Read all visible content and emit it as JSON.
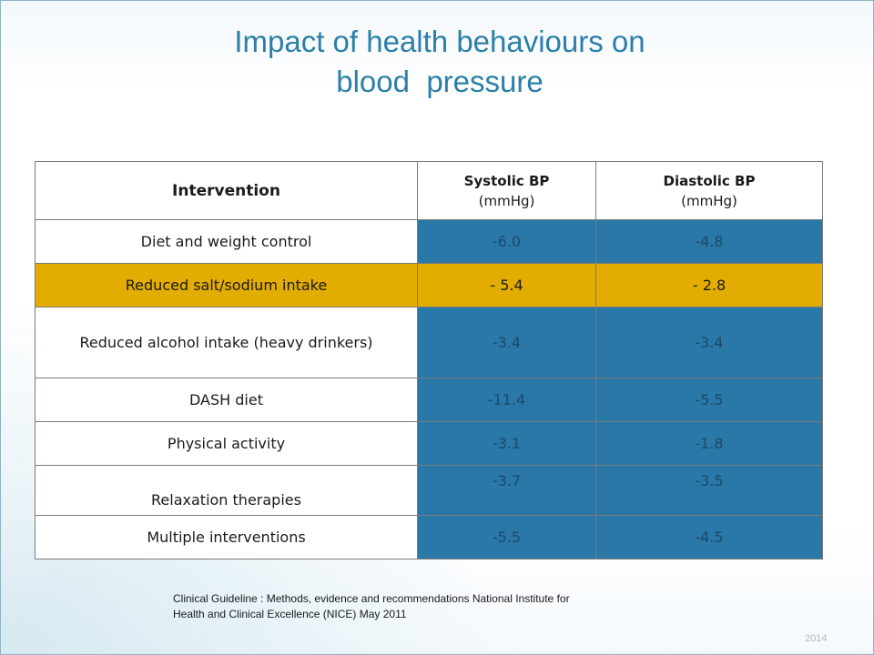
{
  "title": {
    "line1": "Impact of health behaviours on",
    "line2": "blood  pressure"
  },
  "table": {
    "headers": [
      {
        "main": "Intervention",
        "unit": ""
      },
      {
        "main": "Systolic BP",
        "unit": "(mmHg)"
      },
      {
        "main": "Diastolic BP",
        "unit": "(mmHg)"
      }
    ],
    "rows": [
      {
        "intervention": "Diet and weight control",
        "systolic": "-6.0",
        "diastolic": "-4.8"
      },
      {
        "intervention": "Reduced salt/sodium intake",
        "systolic": "- 5.4",
        "diastolic": "- 2.8"
      },
      {
        "intervention": "Reduced alcohol intake (heavy drinkers)",
        "systolic": "-3.4",
        "diastolic": "-3.4"
      },
      {
        "intervention": "DASH diet",
        "systolic": "-11.4",
        "diastolic": "-5.5"
      },
      {
        "intervention": "Physical activity",
        "systolic": "-3.1",
        "diastolic": "-1.8"
      },
      {
        "intervention": "Relaxation therapies",
        "systolic": "-3.7",
        "diastolic": "-3.5"
      },
      {
        "intervention": "Multiple interventions",
        "systolic": "-5.5",
        "diastolic": "-4.5"
      }
    ],
    "highlight_row": 1,
    "colors": {
      "value_cell": "#2978a8",
      "highlight": "#e2ad00",
      "title": "#2c7fa8"
    }
  },
  "citation": {
    "line1": "Clinical Guideline : Methods, evidence and recommendations National Institute for",
    "line2": "Health and Clinical Excellence (NICE) May 2011"
  },
  "footer": {
    "page_label": "2014"
  }
}
